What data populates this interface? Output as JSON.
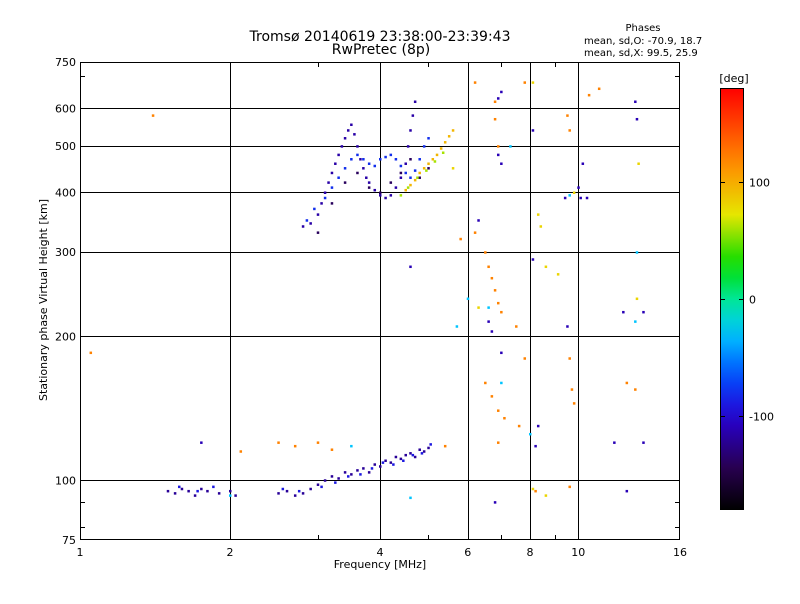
{
  "chart_data": {
    "type": "scatter",
    "title": "Tromsø 20140619 23:38:00-23:39:43",
    "subtitle": "RwPretec (8p)",
    "xlabel": "Frequency [MHz]",
    "ylabel": "Stationary phase Virtual Height [km]",
    "x_scale": "log",
    "y_scale": "log",
    "xlim": [
      1,
      16
    ],
    "ylim": [
      75,
      750
    ],
    "x_ticks": [
      1,
      2,
      4,
      6,
      8,
      10,
      16
    ],
    "x_tick_labels": [
      "1",
      "2",
      "4",
      "6",
      "8",
      "10",
      "16"
    ],
    "y_ticks": [
      75,
      100,
      200,
      300,
      400,
      500,
      600,
      750
    ],
    "y_tick_labels": [
      "75",
      "100",
      "200",
      "300",
      "400",
      "500",
      "600",
      "750"
    ],
    "grid": true,
    "phases": {
      "heading": "Phases",
      "line_o": "mean, sd,O: -70.9, 18.7",
      "line_x": "mean, sd,X:  99.5, 25.9"
    },
    "colorbar": {
      "label": "[deg]",
      "range": [
        -180,
        180
      ],
      "ticks": [
        100,
        0,
        -100
      ],
      "tick_labels": [
        "100",
        "0",
        "-100"
      ]
    },
    "clusters": [
      {
        "phase": -120,
        "points": [
          [
            1.5,
            95
          ],
          [
            1.55,
            94
          ],
          [
            1.6,
            96
          ],
          [
            1.65,
            95
          ],
          [
            1.7,
            93
          ],
          [
            1.75,
            96
          ],
          [
            1.8,
            95
          ],
          [
            1.9,
            94
          ],
          [
            2.0,
            95
          ],
          [
            2.05,
            93
          ],
          [
            2.5,
            94
          ],
          [
            2.6,
            95
          ],
          [
            2.7,
            93
          ],
          [
            2.8,
            94
          ],
          [
            2.9,
            96
          ],
          [
            3.0,
            98
          ],
          [
            3.1,
            100
          ],
          [
            3.2,
            102
          ],
          [
            3.3,
            101
          ],
          [
            3.4,
            104
          ],
          [
            3.5,
            103
          ],
          [
            3.6,
            105
          ],
          [
            3.7,
            106
          ],
          [
            3.8,
            104
          ],
          [
            3.9,
            108
          ],
          [
            4.0,
            107
          ],
          [
            4.1,
            110
          ],
          [
            4.2,
            109
          ],
          [
            4.3,
            112
          ],
          [
            4.4,
            111
          ],
          [
            4.5,
            113
          ],
          [
            4.6,
            114
          ],
          [
            4.7,
            112
          ],
          [
            4.8,
            116
          ],
          [
            4.9,
            115
          ],
          [
            5.0,
            117
          ]
        ]
      },
      {
        "phase": -90,
        "points": [
          [
            1.58,
            97
          ],
          [
            1.72,
            95
          ],
          [
            1.85,
            97
          ],
          [
            2.55,
            96
          ],
          [
            2.75,
            95
          ],
          [
            3.05,
            97
          ],
          [
            3.25,
            99
          ],
          [
            3.45,
            102
          ],
          [
            3.65,
            103
          ],
          [
            3.85,
            106
          ],
          [
            4.05,
            109
          ],
          [
            4.25,
            108
          ],
          [
            4.45,
            110
          ],
          [
            4.65,
            113
          ],
          [
            4.85,
            114
          ],
          [
            5.05,
            119
          ]
        ]
      },
      {
        "phase": -115,
        "points": [
          [
            2.8,
            340
          ],
          [
            2.9,
            345
          ],
          [
            3.0,
            360
          ],
          [
            3.05,
            380
          ],
          [
            3.1,
            400
          ],
          [
            3.15,
            420
          ],
          [
            3.2,
            440
          ],
          [
            3.25,
            460
          ],
          [
            3.3,
            480
          ],
          [
            3.35,
            500
          ],
          [
            3.4,
            520
          ],
          [
            3.45,
            540
          ],
          [
            3.5,
            555
          ],
          [
            3.55,
            530
          ],
          [
            3.6,
            500
          ],
          [
            3.65,
            470
          ],
          [
            3.7,
            450
          ],
          [
            3.75,
            430
          ],
          [
            3.8,
            420
          ],
          [
            3.9,
            405
          ],
          [
            4.0,
            395
          ],
          [
            4.1,
            390
          ],
          [
            4.2,
            395
          ],
          [
            4.3,
            410
          ],
          [
            4.4,
            430
          ],
          [
            4.5,
            460
          ],
          [
            4.55,
            500
          ],
          [
            4.6,
            540
          ],
          [
            4.65,
            580
          ],
          [
            4.7,
            620
          ]
        ]
      },
      {
        "phase": -80,
        "points": [
          [
            2.85,
            350
          ],
          [
            2.95,
            370
          ],
          [
            3.1,
            390
          ],
          [
            3.2,
            410
          ],
          [
            3.3,
            430
          ],
          [
            3.4,
            450
          ],
          [
            3.5,
            470
          ],
          [
            3.6,
            480
          ],
          [
            3.7,
            470
          ],
          [
            3.8,
            460
          ],
          [
            3.9,
            455
          ],
          [
            4.0,
            470
          ],
          [
            4.1,
            475
          ],
          [
            4.2,
            480
          ],
          [
            4.3,
            470
          ],
          [
            4.4,
            455
          ],
          [
            4.5,
            440
          ],
          [
            4.6,
            430
          ],
          [
            4.7,
            445
          ],
          [
            4.8,
            470
          ],
          [
            4.9,
            500
          ],
          [
            5.0,
            520
          ]
        ]
      },
      {
        "phase": -140,
        "points": [
          [
            3.0,
            330
          ],
          [
            3.2,
            380
          ],
          [
            3.4,
            420
          ],
          [
            3.6,
            440
          ],
          [
            3.8,
            410
          ],
          [
            4.0,
            400
          ],
          [
            4.2,
            420
          ],
          [
            4.4,
            440
          ],
          [
            4.6,
            470
          ],
          [
            4.8,
            430
          ],
          [
            5.0,
            450
          ]
        ]
      },
      {
        "phase": 95,
        "points": [
          [
            4.5,
            405
          ],
          [
            4.6,
            415
          ],
          [
            4.7,
            425
          ],
          [
            4.8,
            440
          ],
          [
            4.9,
            450
          ],
          [
            5.0,
            460
          ],
          [
            5.1,
            470
          ],
          [
            5.2,
            480
          ],
          [
            5.3,
            495
          ],
          [
            5.4,
            510
          ],
          [
            5.5,
            525
          ],
          [
            5.6,
            540
          ]
        ]
      },
      {
        "phase": 60,
        "points": [
          [
            4.4,
            395
          ],
          [
            4.55,
            410
          ],
          [
            4.75,
            430
          ],
          [
            4.95,
            445
          ],
          [
            5.15,
            465
          ],
          [
            5.35,
            485
          ]
        ]
      },
      {
        "phase": 120,
        "points": [
          [
            6.2,
            680
          ],
          [
            7.8,
            680
          ],
          [
            11.0,
            660
          ],
          [
            10.5,
            640
          ],
          [
            9.5,
            580
          ],
          [
            9.6,
            540
          ],
          [
            6.8,
            620
          ],
          [
            6.8,
            570
          ],
          [
            6.9,
            500
          ],
          [
            1.4,
            580
          ],
          [
            5.8,
            320
          ],
          [
            6.2,
            330
          ],
          [
            6.5,
            300
          ],
          [
            6.6,
            280
          ],
          [
            6.7,
            265
          ],
          [
            6.8,
            250
          ],
          [
            6.9,
            235
          ],
          [
            7.0,
            225
          ],
          [
            7.5,
            210
          ],
          [
            7.8,
            180
          ],
          [
            9.6,
            180
          ],
          [
            9.7,
            155
          ],
          [
            9.8,
            145
          ],
          [
            6.5,
            160
          ],
          [
            6.7,
            150
          ],
          [
            6.9,
            140
          ],
          [
            7.6,
            130
          ],
          [
            7.1,
            135
          ],
          [
            6.9,
            120
          ],
          [
            12.5,
            160
          ],
          [
            13.0,
            155
          ],
          [
            1.05,
            185
          ],
          [
            2.1,
            115
          ],
          [
            2.5,
            120
          ],
          [
            2.7,
            118
          ],
          [
            3.0,
            120
          ],
          [
            3.2,
            116
          ],
          [
            5.4,
            118
          ],
          [
            9.6,
            97
          ],
          [
            8.2,
            95
          ]
        ]
      },
      {
        "phase": 80,
        "points": [
          [
            8.1,
            680
          ],
          [
            8.3,
            360
          ],
          [
            8.4,
            340
          ],
          [
            8.6,
            280
          ],
          [
            9.1,
            270
          ],
          [
            6.3,
            230
          ],
          [
            13.1,
            240
          ],
          [
            13.2,
            460
          ],
          [
            9.8,
            400
          ],
          [
            8.1,
            96
          ],
          [
            8.6,
            93
          ],
          [
            5.6,
            450
          ]
        ]
      },
      {
        "phase": -110,
        "points": [
          [
            6.9,
            630
          ],
          [
            7.0,
            650
          ],
          [
            13.0,
            620
          ],
          [
            13.1,
            570
          ],
          [
            8.1,
            540
          ],
          [
            6.9,
            480
          ],
          [
            7.0,
            460
          ],
          [
            6.3,
            350
          ],
          [
            6.6,
            215
          ],
          [
            6.7,
            205
          ],
          [
            8.1,
            290
          ],
          [
            9.5,
            210
          ],
          [
            10.2,
            460
          ],
          [
            10.0,
            410
          ],
          [
            10.1,
            390
          ],
          [
            12.3,
            225
          ],
          [
            13.5,
            225
          ],
          [
            11.8,
            120
          ],
          [
            12.5,
            95
          ],
          [
            13.5,
            120
          ],
          [
            8.3,
            130
          ],
          [
            8.2,
            118
          ],
          [
            7.0,
            185
          ],
          [
            6.8,
            90
          ],
          [
            4.6,
            280
          ],
          [
            1.75,
            120
          ],
          [
            10.4,
            390
          ],
          [
            9.4,
            390
          ]
        ]
      },
      {
        "phase": -30,
        "points": [
          [
            6.0,
            240
          ],
          [
            5.7,
            210
          ],
          [
            6.6,
            230
          ],
          [
            7.0,
            160
          ],
          [
            7.3,
            500
          ],
          [
            13.1,
            300
          ],
          [
            9.6,
            395
          ],
          [
            13.0,
            215
          ],
          [
            8.0,
            125
          ],
          [
            4.6,
            92
          ],
          [
            3.5,
            118
          ],
          [
            2.0,
            93
          ]
        ]
      }
    ]
  }
}
